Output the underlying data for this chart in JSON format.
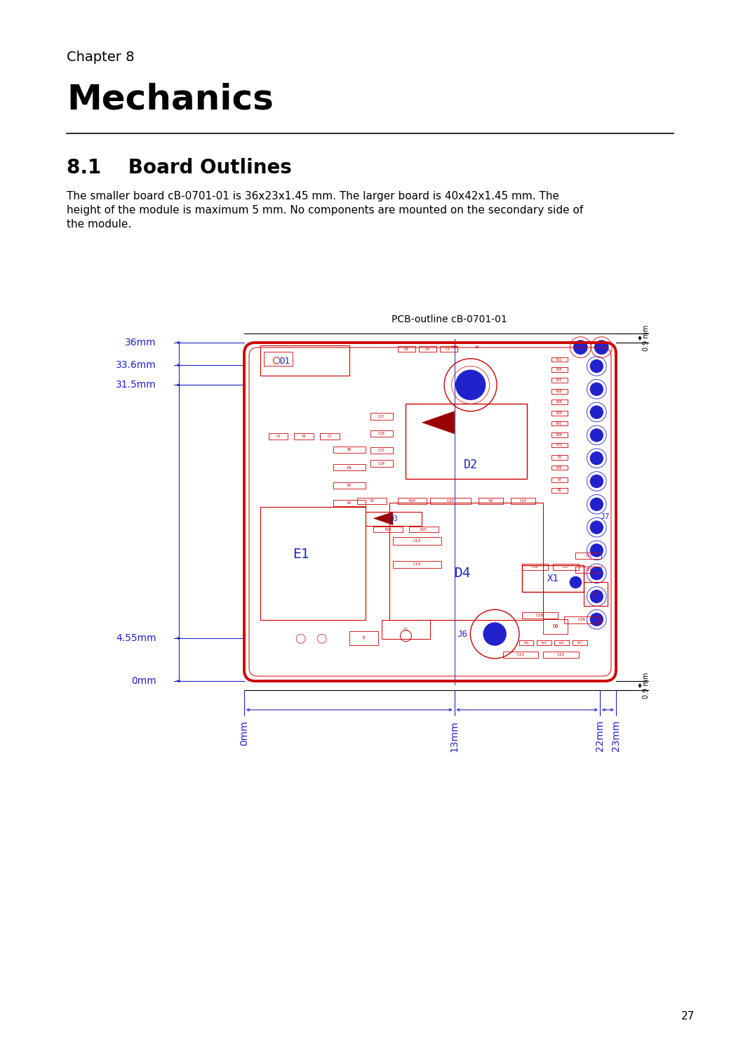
{
  "page_number": "27",
  "chapter_label": "Chapter 8",
  "chapter_title": "Mechanics",
  "section_title": "8.1    Board Outlines",
  "body_lines": [
    "The smaller board cB-0701-01 is 36x23x1.45 mm. The larger board is 40x42x1.45 mm. The",
    "height of the module is maximum 5 mm. No components are mounted on the secondary side of",
    "the module."
  ],
  "pcb_label": "PCB-outline cB-0701-01",
  "bg_color": "#ffffff",
  "red_color": "#cc0000",
  "blue_color": "#2222cc",
  "black_color": "#000000"
}
